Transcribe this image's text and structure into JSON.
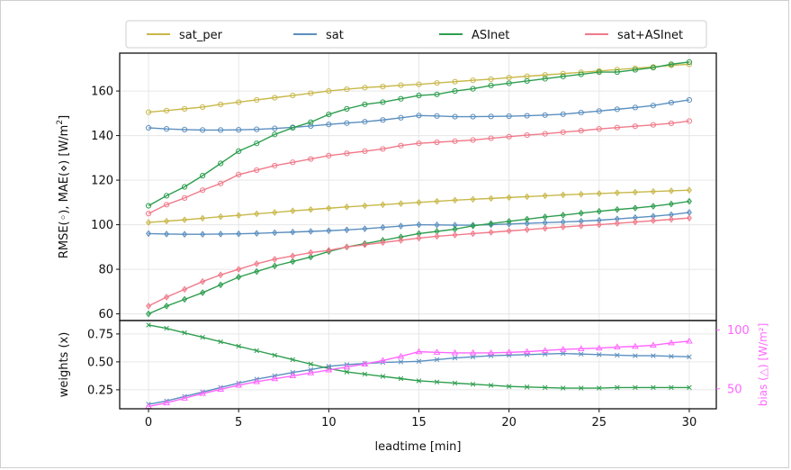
{
  "chart_data": [
    {
      "type": "line",
      "ylabel_parts": [
        "RMSE(",
        "), MAE(",
        ")  [W/m",
        "2",
        "]"
      ],
      "ylim": [
        57,
        177
      ],
      "yticks": [
        60,
        80,
        100,
        120,
        140,
        160
      ],
      "grid": true,
      "legend": {
        "placement": "top (outside)",
        "entries": [
          "sat_per",
          "sat",
          "ASInet",
          "sat+ASInet"
        ]
      },
      "x": [
        0,
        1,
        2,
        3,
        4,
        5,
        6,
        7,
        8,
        9,
        10,
        11,
        12,
        13,
        14,
        15,
        16,
        17,
        18,
        19,
        20,
        21,
        22,
        23,
        24,
        25,
        26,
        27,
        28,
        29,
        30
      ],
      "series": [
        {
          "name": "sat_per",
          "metric": "RMSE",
          "color": "#c8b84a",
          "values": [
            150.5,
            151.2,
            152,
            152.8,
            154,
            155,
            156,
            157,
            158,
            159,
            160,
            160.8,
            161.5,
            162,
            162.6,
            163,
            163.6,
            164.2,
            164.8,
            165.3,
            166,
            166.6,
            167.2,
            167.8,
            168.4,
            169,
            169.6,
            170.2,
            170.8,
            171.5,
            172
          ]
        },
        {
          "name": "sat",
          "metric": "RMSE",
          "color": "#5b8fbf",
          "values": [
            143.5,
            143,
            142.7,
            142.5,
            142.5,
            142.6,
            142.8,
            143.2,
            143.7,
            144.3,
            145,
            145.6,
            146.2,
            147,
            148,
            149,
            148.8,
            148.5,
            148.5,
            148.6,
            148.7,
            148.9,
            149.2,
            149.6,
            150.3,
            151,
            151.8,
            152.6,
            153.5,
            154.8,
            156
          ]
        },
        {
          "name": "ASInet",
          "metric": "RMSE",
          "color": "#2e9e4f",
          "values": [
            108.5,
            113,
            117,
            122,
            127.5,
            133,
            136.5,
            140.5,
            143.5,
            146,
            149.5,
            152,
            154,
            155,
            156.5,
            158,
            158.5,
            160,
            161,
            162.5,
            163.5,
            164.5,
            165.5,
            166.5,
            167.5,
            168.5,
            168.5,
            169.5,
            170.5,
            172,
            173
          ]
        },
        {
          "name": "sat+ASInet",
          "metric": "RMSE",
          "color": "#f07a8a",
          "values": [
            105,
            109,
            112,
            115.5,
            118.5,
            122.5,
            124.5,
            126.5,
            128,
            129.5,
            131,
            132,
            133,
            134,
            135.5,
            136.5,
            137,
            137.5,
            138,
            138.8,
            139.5,
            140.2,
            140.8,
            141.5,
            142.2,
            143,
            143.6,
            144.2,
            144.8,
            145.5,
            146.5
          ]
        },
        {
          "name": "sat_per",
          "metric": "MAE",
          "color": "#c8b84a",
          "values": [
            101,
            101.6,
            102.2,
            102.9,
            103.6,
            104.2,
            104.9,
            105.5,
            106.2,
            106.8,
            107.4,
            108,
            108.5,
            109,
            109.5,
            110,
            110.5,
            111,
            111.4,
            111.8,
            112.2,
            112.6,
            113,
            113.4,
            113.7,
            114,
            114.3,
            114.6,
            114.9,
            115.2,
            115.5
          ]
        },
        {
          "name": "sat",
          "metric": "MAE",
          "color": "#5b8fbf",
          "values": [
            96,
            95.8,
            95.7,
            95.7,
            95.8,
            95.9,
            96.1,
            96.4,
            96.7,
            97,
            97.3,
            97.7,
            98.2,
            98.8,
            99.4,
            100,
            99.9,
            99.8,
            99.8,
            100,
            100.3,
            100.6,
            100.9,
            101.2,
            101.6,
            102,
            102.6,
            103.2,
            103.8,
            104.5,
            105.5
          ]
        },
        {
          "name": "ASInet",
          "metric": "MAE",
          "color": "#2e9e4f",
          "values": [
            60,
            63.5,
            66.5,
            69.5,
            73,
            76.5,
            79,
            81.5,
            83.5,
            85.5,
            88,
            90,
            91.5,
            93,
            94.5,
            96,
            97,
            98,
            99.5,
            100.5,
            101.5,
            102.5,
            103.5,
            104.3,
            105.2,
            106,
            106.8,
            107.5,
            108.3,
            109.3,
            110.5
          ]
        },
        {
          "name": "sat+ASInet",
          "metric": "MAE",
          "color": "#f07a8a",
          "values": [
            63.5,
            67.5,
            71,
            74.5,
            77.5,
            80,
            82.5,
            84.5,
            86,
            87.5,
            88.5,
            90,
            91,
            92,
            93,
            94,
            94.8,
            95.4,
            96,
            96.6,
            97.2,
            97.8,
            98.4,
            99,
            99.5,
            100,
            100.6,
            101.2,
            101.8,
            102.4,
            103
          ]
        }
      ]
    },
    {
      "type": "line",
      "ylabel": "weights (x)",
      "ylim": [
        0.08,
        0.87
      ],
      "yticks": [
        0.25,
        0.5,
        0.75
      ],
      "ytick_labels": [
        "0.25",
        "0.50",
        "0.75"
      ],
      "xlabel": "leadtime [min]",
      "xlim": [
        -1.6,
        31.5
      ],
      "xticks": [
        0,
        5,
        10,
        15,
        20,
        25,
        30
      ],
      "grid": true,
      "x": [
        0,
        1,
        2,
        3,
        4,
        5,
        6,
        7,
        8,
        9,
        10,
        11,
        12,
        13,
        14,
        15,
        16,
        17,
        18,
        19,
        20,
        21,
        22,
        23,
        24,
        25,
        26,
        27,
        28,
        29,
        30
      ],
      "series": [
        {
          "name": "sat",
          "metric": "weight",
          "color": "#5b8fbf",
          "values": [
            0.12,
            0.15,
            0.19,
            0.23,
            0.27,
            0.31,
            0.345,
            0.375,
            0.405,
            0.43,
            0.46,
            0.475,
            0.485,
            0.495,
            0.5,
            0.505,
            0.52,
            0.535,
            0.545,
            0.555,
            0.56,
            0.565,
            0.57,
            0.575,
            0.57,
            0.565,
            0.56,
            0.555,
            0.555,
            0.55,
            0.545
          ]
        },
        {
          "name": "ASInet",
          "metric": "weight",
          "color": "#2e9e4f",
          "values": [
            0.83,
            0.8,
            0.76,
            0.72,
            0.68,
            0.64,
            0.6,
            0.56,
            0.52,
            0.48,
            0.44,
            0.41,
            0.39,
            0.37,
            0.35,
            0.33,
            0.32,
            0.31,
            0.3,
            0.29,
            0.28,
            0.275,
            0.27,
            0.265,
            0.265,
            0.265,
            0.27,
            0.27,
            0.27,
            0.27,
            0.27
          ]
        }
      ],
      "secondary_axis": {
        "ylabel": "bias (△)  [W/m²]",
        "color": "#ff66ff",
        "ylim": [
          33,
          108
        ],
        "yticks": [
          50,
          100
        ],
        "series": {
          "name": "bias",
          "values": [
            35,
            38,
            42,
            46,
            49.5,
            53,
            56,
            58.5,
            61,
            63.5,
            66,
            68.5,
            71,
            74,
            77.5,
            81.5,
            81,
            80.5,
            80.5,
            80.5,
            81,
            81.5,
            82.5,
            83.5,
            84,
            84.5,
            85.5,
            86,
            87,
            89,
            90.5
          ]
        }
      }
    }
  ]
}
